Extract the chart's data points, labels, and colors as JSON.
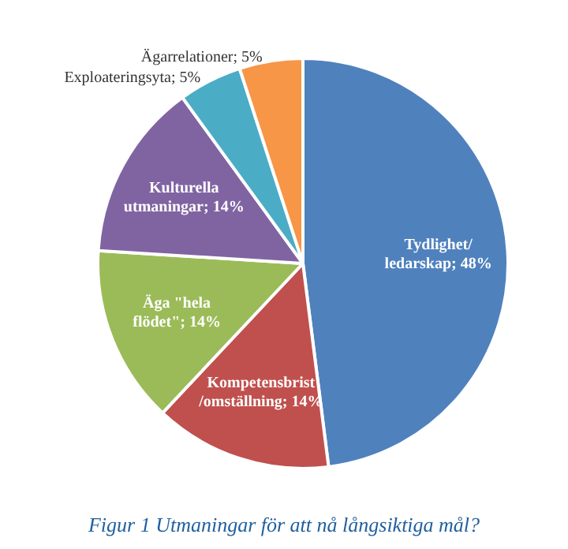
{
  "chart_data": {
    "type": "pie",
    "title": "Figur 1 Utmaningar för att nå långsiktiga mål?",
    "categories": [
      "Tydlighet/ ledarskap",
      "Kompetensbrist /omställning",
      "Äga \"hela flödet\"",
      "Kulturella utmaningar",
      "Exploateringsyta",
      "Ägarrelationer"
    ],
    "values": [
      48,
      14,
      14,
      14,
      5,
      5
    ],
    "value_labels": [
      "48%",
      "14%",
      "14%",
      "14%",
      "5%",
      "5%"
    ],
    "colors": [
      "#4f81bd",
      "#c0504d",
      "#9bbb59",
      "#8064a2",
      "#4bacc6",
      "#f79646"
    ],
    "legend": false
  }
}
